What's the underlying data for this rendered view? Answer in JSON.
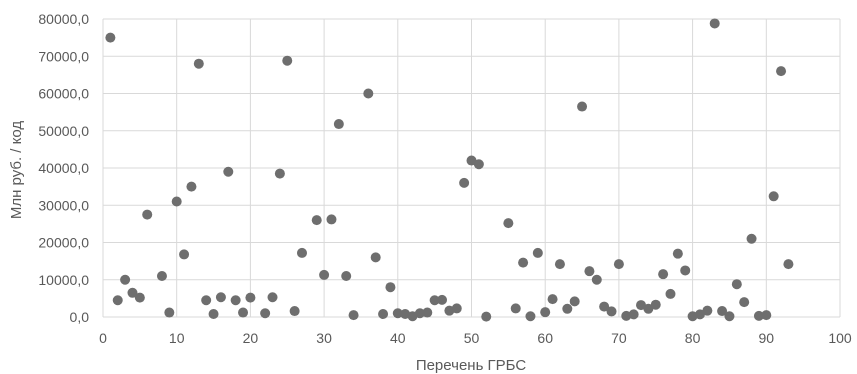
{
  "chart_data": {
    "type": "scatter",
    "title": "",
    "xlabel": "Перечень ГРБС",
    "ylabel": "Млн  руб. / код",
    "xlim": [
      0,
      100
    ],
    "ylim": [
      0,
      80000
    ],
    "grid": true,
    "point_color": "#6e6e6e",
    "x_ticks": [
      {
        "v": 0,
        "label": "0"
      },
      {
        "v": 10,
        "label": "10"
      },
      {
        "v": 20,
        "label": "20"
      },
      {
        "v": 30,
        "label": "30"
      },
      {
        "v": 40,
        "label": "40"
      },
      {
        "v": 50,
        "label": "50"
      },
      {
        "v": 60,
        "label": "60"
      },
      {
        "v": 70,
        "label": "70"
      },
      {
        "v": 80,
        "label": "80"
      },
      {
        "v": 90,
        "label": "90"
      },
      {
        "v": 100,
        "label": "100"
      }
    ],
    "y_ticks": [
      {
        "v": 0,
        "label": "0,0"
      },
      {
        "v": 10000,
        "label": "10000,0"
      },
      {
        "v": 20000,
        "label": "20000,0"
      },
      {
        "v": 30000,
        "label": "30000,0"
      },
      {
        "v": 40000,
        "label": "40000,0"
      },
      {
        "v": 50000,
        "label": "50000,0"
      },
      {
        "v": 60000,
        "label": "60000,0"
      },
      {
        "v": 70000,
        "label": "70000,0"
      },
      {
        "v": 80000,
        "label": "80000,0"
      }
    ],
    "series": [
      {
        "points": [
          [
            1,
            75000
          ],
          [
            2,
            4500
          ],
          [
            3,
            10000
          ],
          [
            4,
            6500
          ],
          [
            5,
            5200
          ],
          [
            6,
            27500
          ],
          [
            8,
            11000
          ],
          [
            9,
            1200
          ],
          [
            10,
            31000
          ],
          [
            11,
            16800
          ],
          [
            12,
            35000
          ],
          [
            13,
            68000
          ],
          [
            14,
            4500
          ],
          [
            15,
            800
          ],
          [
            16,
            5300
          ],
          [
            17,
            39000
          ],
          [
            18,
            4500
          ],
          [
            19,
            1200
          ],
          [
            20,
            5200
          ],
          [
            22,
            1000
          ],
          [
            23,
            5300
          ],
          [
            24,
            38500
          ],
          [
            25,
            68800
          ],
          [
            26,
            1600
          ],
          [
            27,
            17200
          ],
          [
            29,
            26000
          ],
          [
            30,
            11300
          ],
          [
            31,
            26200
          ],
          [
            32,
            51800
          ],
          [
            33,
            11000
          ],
          [
            34,
            500
          ],
          [
            36,
            60000
          ],
          [
            37,
            16000
          ],
          [
            38,
            800
          ],
          [
            39,
            8000
          ],
          [
            40,
            1000
          ],
          [
            41,
            800
          ],
          [
            42,
            200
          ],
          [
            43,
            1000
          ],
          [
            44,
            1200
          ],
          [
            45,
            4500
          ],
          [
            46,
            4600
          ],
          [
            47,
            1700
          ],
          [
            48,
            2300
          ],
          [
            49,
            36000
          ],
          [
            50,
            42000
          ],
          [
            51,
            41000
          ],
          [
            52,
            100
          ],
          [
            55,
            25200
          ],
          [
            56,
            2300
          ],
          [
            57,
            14600
          ],
          [
            58,
            200
          ],
          [
            59,
            17200
          ],
          [
            60,
            1300
          ],
          [
            61,
            4800
          ],
          [
            62,
            14200
          ],
          [
            63,
            2200
          ],
          [
            64,
            4200
          ],
          [
            65,
            56500
          ],
          [
            66,
            12300
          ],
          [
            67,
            10000
          ],
          [
            68,
            2800
          ],
          [
            69,
            1500
          ],
          [
            70,
            14200
          ],
          [
            71,
            300
          ],
          [
            72,
            700
          ],
          [
            73,
            3200
          ],
          [
            74,
            2200
          ],
          [
            75,
            3300
          ],
          [
            76,
            11500
          ],
          [
            77,
            6200
          ],
          [
            78,
            17000
          ],
          [
            79,
            12500
          ],
          [
            80,
            200
          ],
          [
            81,
            700
          ],
          [
            82,
            1700
          ],
          [
            83,
            78800
          ],
          [
            84,
            1600
          ],
          [
            85,
            200
          ],
          [
            86,
            8800
          ],
          [
            87,
            4000
          ],
          [
            88,
            21000
          ],
          [
            89,
            300
          ],
          [
            90,
            500
          ],
          [
            91,
            32400
          ],
          [
            92,
            66000
          ],
          [
            93,
            14200
          ]
        ]
      }
    ]
  }
}
